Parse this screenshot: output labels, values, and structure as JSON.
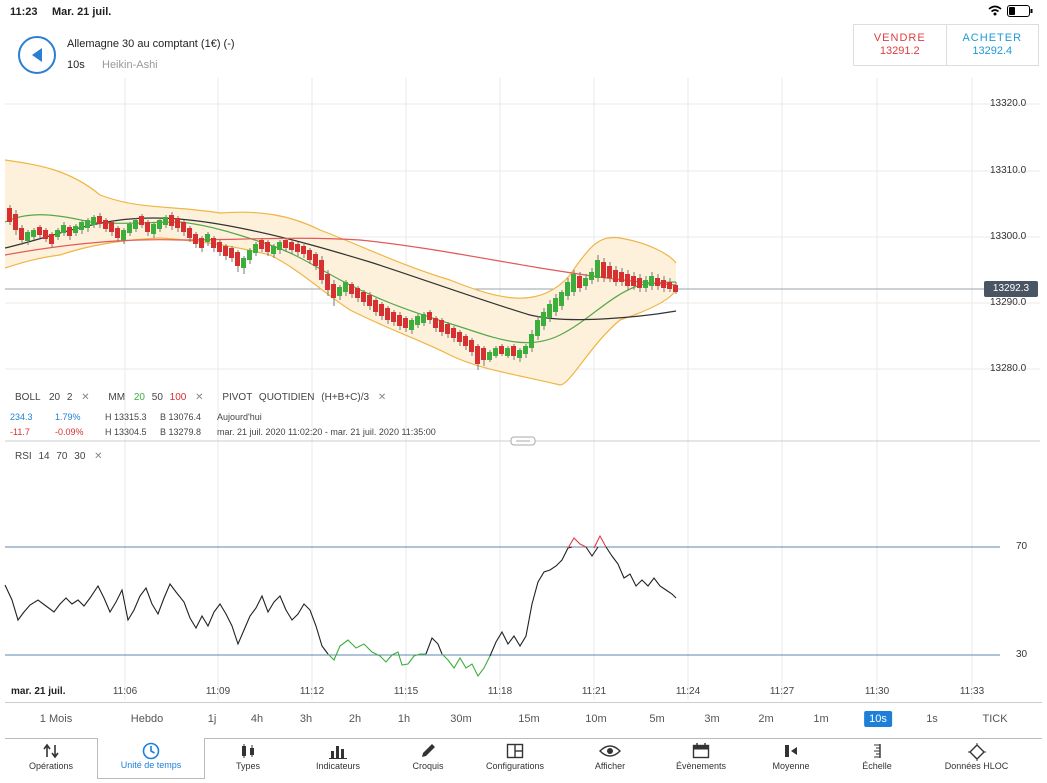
{
  "status": {
    "time": "11:23",
    "date": "Mar. 21 juil."
  },
  "header": {
    "instrument": "Allemagne 30 au comptant (1€) (-)",
    "period": "10s",
    "chart_type": "Heikin-Ashi"
  },
  "trade": {
    "sell_label": "VENDRE",
    "sell_price": "13291.2",
    "buy_label": "ACHETER",
    "buy_price": "13292.4"
  },
  "price_axis": {
    "labels": [
      "13320.0",
      "13310.0",
      "13300.0",
      "13290.0",
      "13280.0"
    ],
    "current": "13292.3"
  },
  "indicators": {
    "boll": {
      "name": "BOLL",
      "p1": "20",
      "p2": "2"
    },
    "mm": {
      "name": "MM",
      "p1": "20",
      "p2": "50",
      "p3": "100"
    },
    "pivot": {
      "name": "PIVOT",
      "p1": "QUOTIDIEN",
      "p2": "(H+B+C)/3"
    },
    "row1": {
      "v1": "234.3",
      "v2": "1.79%",
      "h": "H 13315.3",
      "b": "B 13076.4",
      "note": "Aujourd'hui"
    },
    "row2": {
      "v1": "-11.7",
      "v2": "-0.09%",
      "h": "H 13304.5",
      "b": "B 13279.8",
      "note": "mar. 21 juil. 2020 11:02:20 - mar. 21 juil. 2020 11:35:00"
    }
  },
  "rsi": {
    "name": "RSI",
    "p1": "14",
    "p2": "70",
    "p3": "30",
    "upper": "70",
    "lower": "30"
  },
  "x_axis": {
    "first": "mar. 21 juil.",
    "labels": [
      "11:06",
      "11:09",
      "11:12",
      "11:15",
      "11:18",
      "11:21",
      "11:24",
      "11:27",
      "11:30",
      "11:33"
    ]
  },
  "timeframes": [
    "1 Mois",
    "Hebdo",
    "1j",
    "4h",
    "3h",
    "2h",
    "1h",
    "30m",
    "15m",
    "10m",
    "5m",
    "3m",
    "2m",
    "1m",
    "10s",
    "1s",
    "TICK"
  ],
  "selected_timeframe": "10s",
  "tabs": [
    {
      "label": "Opérations",
      "icon": "up-down-arrows-icon"
    },
    {
      "label": "Unité de temps",
      "icon": "clock-icon"
    },
    {
      "label": "Types",
      "icon": "candles-icon"
    },
    {
      "label": "Indicateurs",
      "icon": "bar-chart-icon"
    },
    {
      "label": "Croquis",
      "icon": "pencil-icon"
    },
    {
      "label": "Configurations",
      "icon": "layout-icon"
    },
    {
      "label": "Afficher",
      "icon": "eye-icon"
    },
    {
      "label": "Évènements",
      "icon": "calendar-icon"
    },
    {
      "label": "Moyenne",
      "icon": "average-icon"
    },
    {
      "label": "Échelle",
      "icon": "scale-icon"
    },
    {
      "label": "Données HLOC",
      "icon": "crosshair-icon"
    }
  ],
  "active_tab": "Unité de temps",
  "colors": {
    "accent": "#1e7fd8",
    "up": "#3cae3c",
    "down": "#d63030",
    "sell": "#e23c3c",
    "buy": "#1e9ad6"
  }
}
